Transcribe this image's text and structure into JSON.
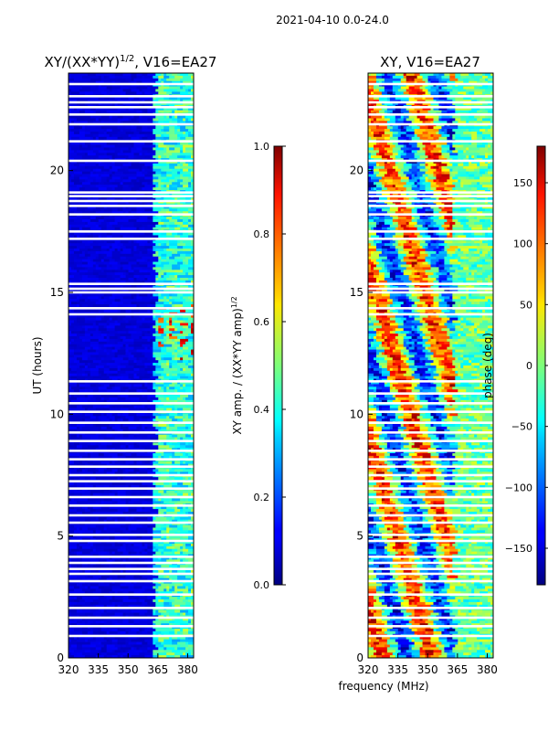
{
  "chart_data": [
    {
      "type": "heatmap",
      "title": "XY/(XX*YY)",
      "title_superscript": "1/2",
      "title_suffix": ", V16=EA27",
      "xlabel": "",
      "ylabel": "UT (hours)",
      "xlim": [
        320,
        383
      ],
      "ylim": [
        0,
        24
      ],
      "x_ticks": [
        "320",
        "335",
        "350",
        "365",
        "380"
      ],
      "y_ticks": [
        "0",
        "5",
        "10",
        "15",
        "20"
      ],
      "colormap": "jet",
      "band_edges_mhz": [
        362,
        383
      ],
      "colorbar": {
        "label": "XY amp. / (XX*YY amp)",
        "label_superscript": "1/2",
        "range": [
          0.0,
          1.0
        ],
        "ticks": [
          "0.0",
          "0.2",
          "0.4",
          "0.6",
          "0.8",
          "1.0"
        ]
      }
    },
    {
      "type": "heatmap",
      "title": "XY, V16=EA27",
      "xlabel": "frequency (MHz)",
      "ylabel": "",
      "xlim": [
        320,
        383
      ],
      "ylim": [
        0,
        24
      ],
      "x_ticks": [
        "320",
        "335",
        "350",
        "365",
        "380"
      ],
      "y_ticks": [
        "0",
        "5",
        "10",
        "15",
        "20"
      ],
      "colormap": "jet",
      "colorbar": {
        "label": "phase (deg)",
        "range": [
          -180,
          180
        ],
        "ticks": [
          "−150",
          "−100",
          "−50",
          "0",
          "50",
          "100",
          "150"
        ]
      }
    }
  ],
  "header": {
    "date_range": "2021-04-10 0.0-24.0"
  },
  "flagged_gaps_hours": [
    0.9,
    1.3,
    1.65,
    2.05,
    2.6,
    3.15,
    3.45,
    3.65,
    3.9,
    4.15,
    4.8,
    5.05,
    5.55,
    5.85,
    6.25,
    6.6,
    6.95,
    7.25,
    7.5,
    7.85,
    8.15,
    8.5,
    8.9,
    9.25,
    9.65,
    10.1,
    10.45,
    10.85,
    11.35,
    14.1,
    14.35,
    15.0,
    15.15,
    15.35,
    17.2,
    17.5,
    18.2,
    18.55,
    18.75,
    18.95,
    19.1,
    20.4,
    21.2,
    21.9,
    22.3,
    22.6,
    22.8,
    23.05,
    23.55
  ]
}
